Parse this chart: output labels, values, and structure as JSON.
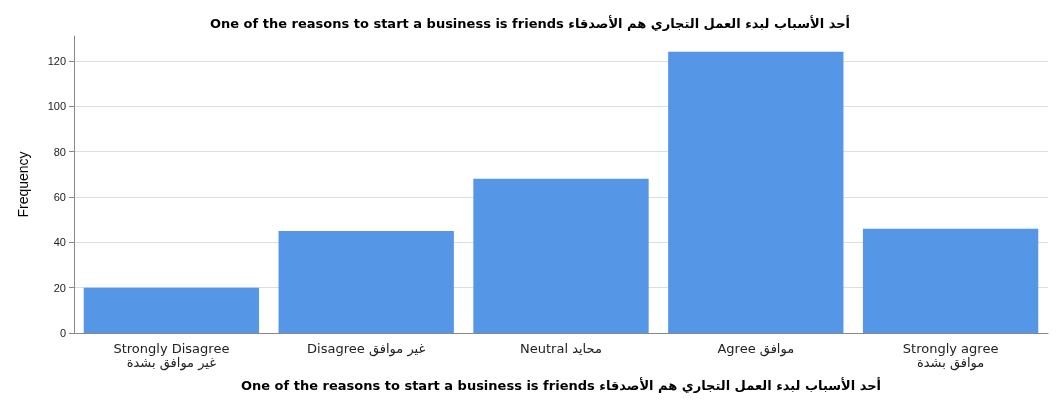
{
  "chart_data": {
    "type": "bar",
    "title": "One of the reasons to start a business is friends أحد الأسباب لبدء العمل التجاري هم الأصدقاء",
    "xlabel": "One of the reasons to start a business is friends أحد الأسباب لبدء العمل التجاري هم الأصدقاء",
    "ylabel": "Frequency",
    "categories": [
      "Strongly Disagree\nغير موافق بشدة",
      "Disagree غير موافق",
      "Neutral محايد",
      "Agree موافق",
      "Strongly agree\nموافق بشدة"
    ],
    "values": [
      20,
      45,
      68,
      124,
      46
    ],
    "color": "#5596e6",
    "ylim": [
      0,
      131
    ],
    "yticks": [
      0,
      20,
      40,
      60,
      80,
      100,
      120
    ],
    "grid": "y"
  }
}
